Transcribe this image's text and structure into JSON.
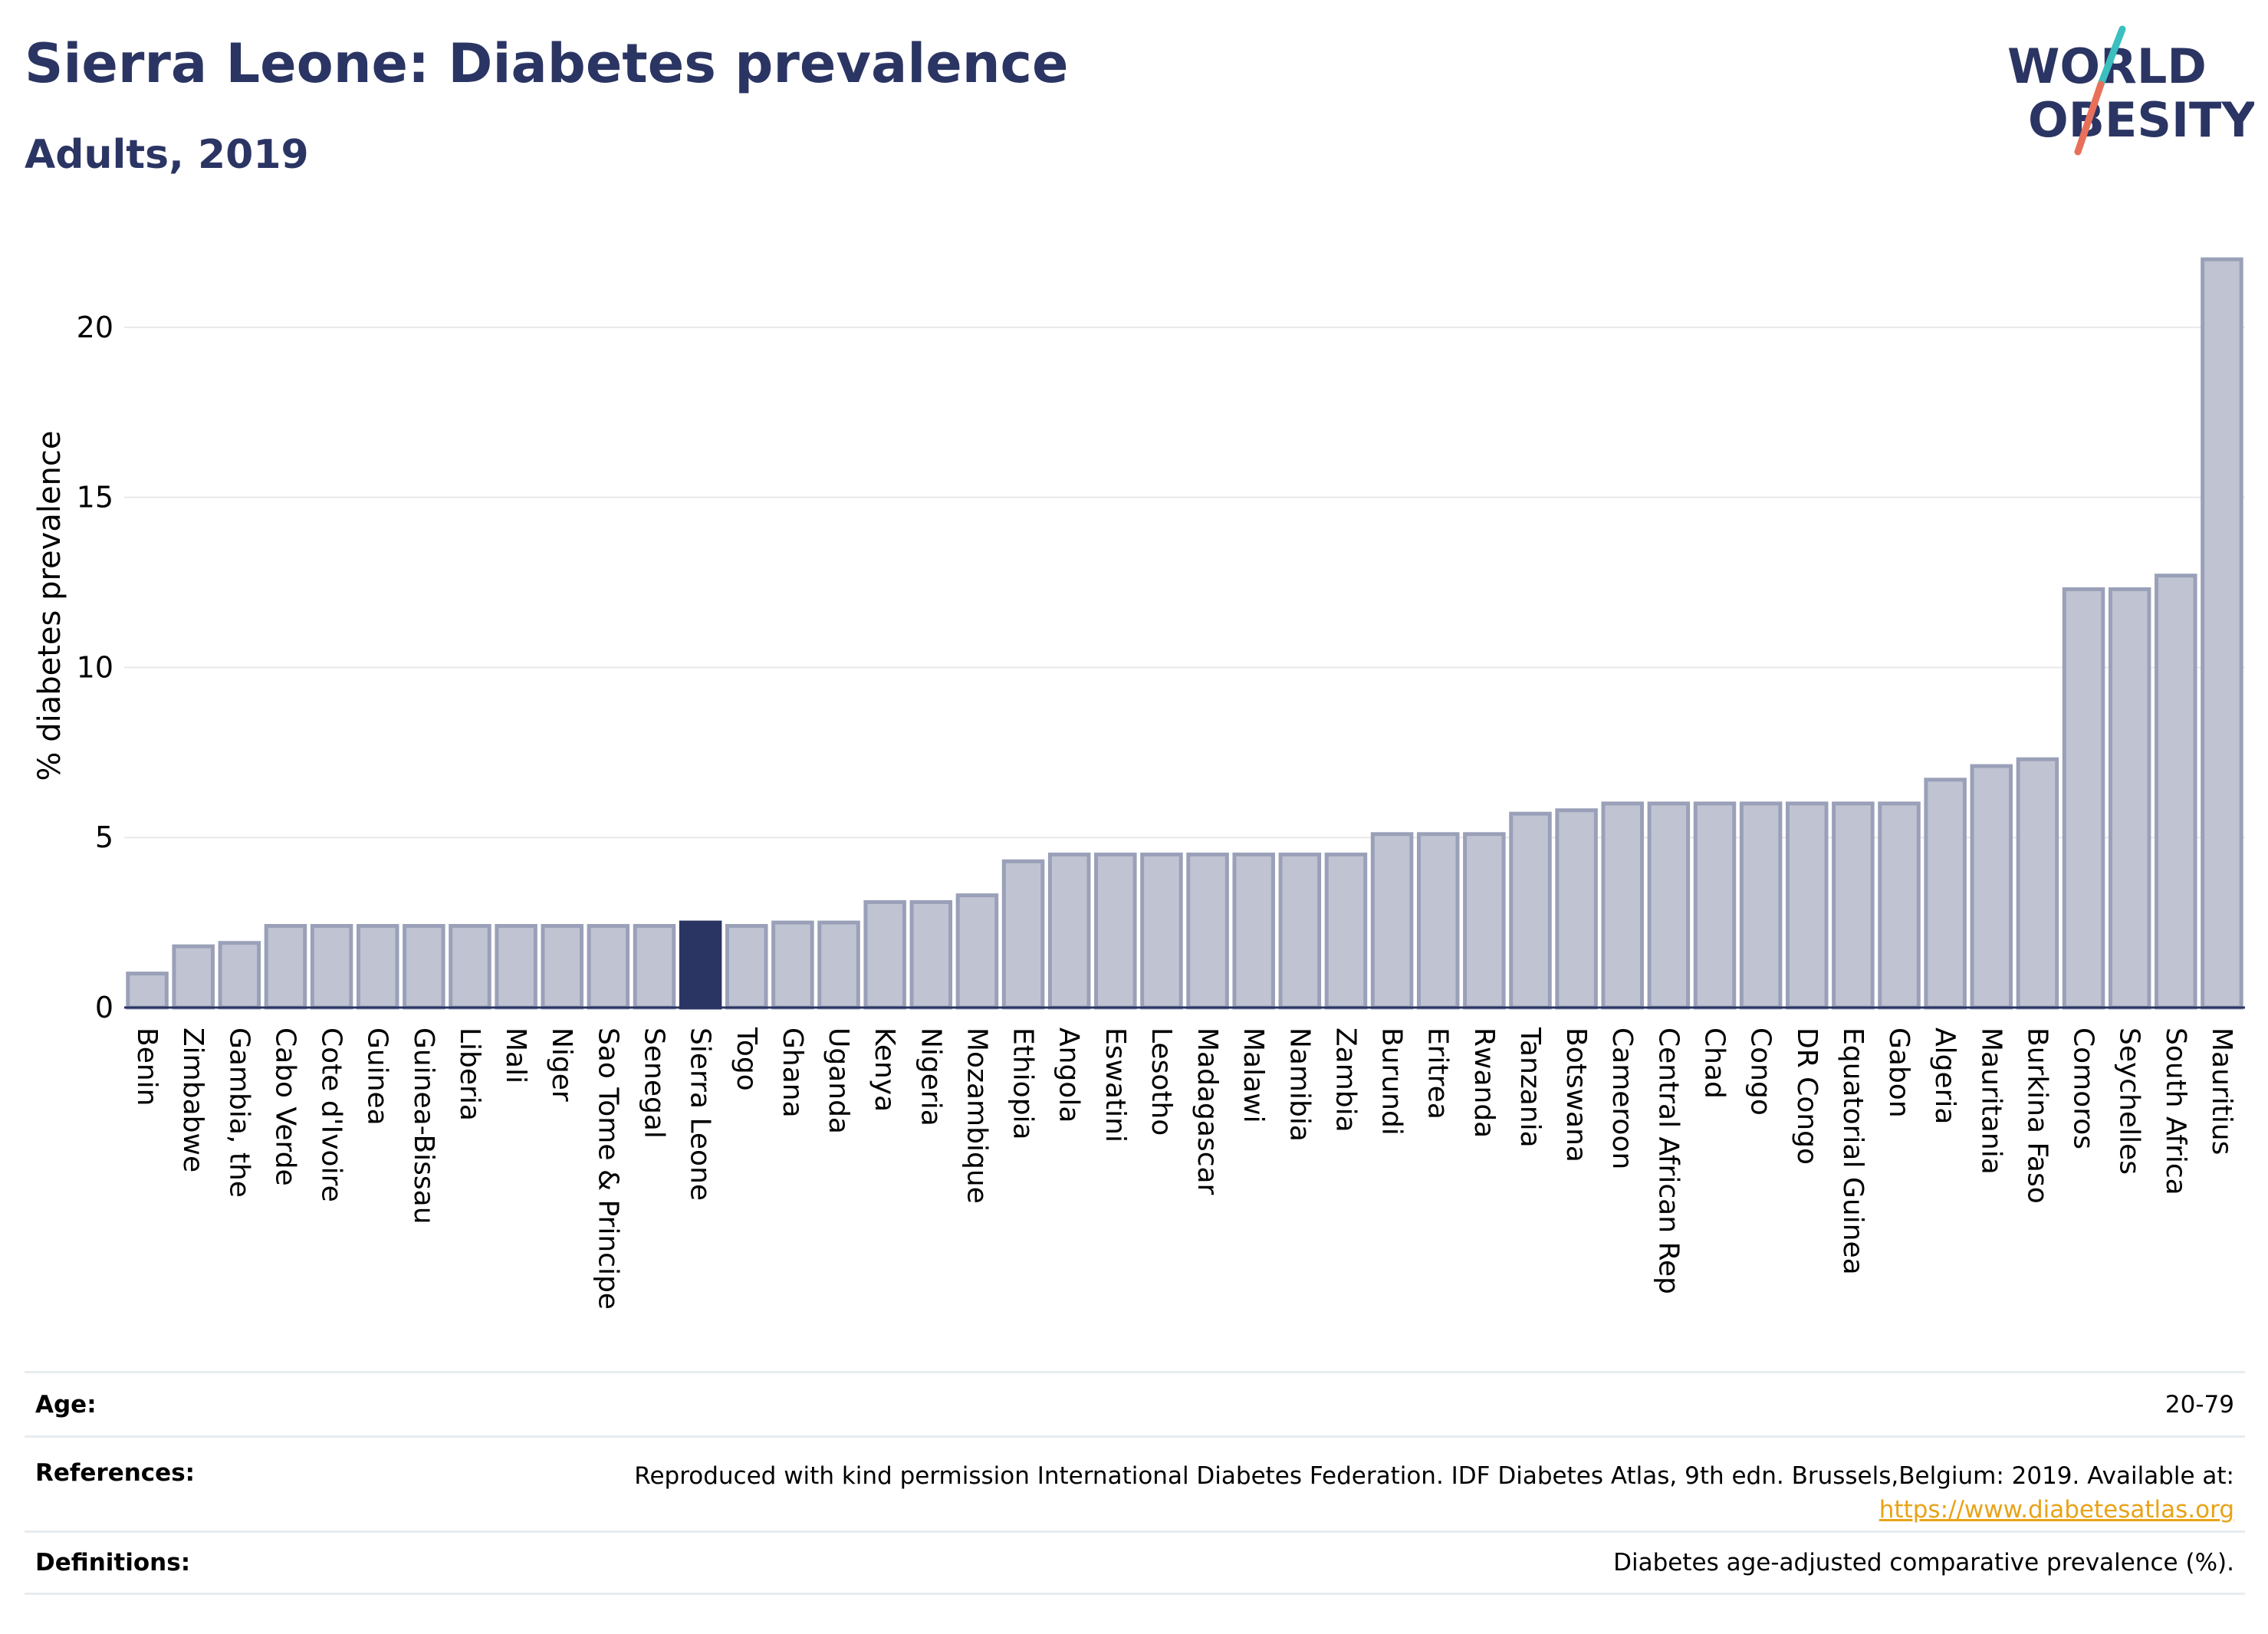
{
  "header": {
    "title": "Sierra Leone: Diabetes prevalence",
    "subtitle": "Adults, 2019"
  },
  "logo": {
    "line1": "WORLD",
    "line2": "OBESITY",
    "accent_colors": [
      "#3bbfbf",
      "#e8705a"
    ],
    "text_color": "#2b3563"
  },
  "chart_data": {
    "type": "bar",
    "title": "Sierra Leone: Diabetes prevalence",
    "subtitle": "Adults, 2019",
    "xlabel": "",
    "ylabel": "% diabetes prevalence",
    "ylim": [
      0,
      22.5
    ],
    "yticks": [
      0,
      5,
      10,
      15,
      20
    ],
    "grid": true,
    "highlight": "Sierra Leone",
    "colors": {
      "bar": "#c0c4d2",
      "bar_edge": "#9aa0b8",
      "highlight": "#2b3563",
      "grid": "#e8e8e8",
      "axis": "#2b3563"
    },
    "categories": [
      "Benin",
      "Zimbabwe",
      "Gambia, the",
      "Cabo Verde",
      "Cote d'Ivoire",
      "Guinea",
      "Guinea-Bissau",
      "Liberia",
      "Mali",
      "Niger",
      "Sao Tome & Principe",
      "Senegal",
      "Sierra Leone",
      "Togo",
      "Ghana",
      "Uganda",
      "Kenya",
      "Nigeria",
      "Mozambique",
      "Ethiopia",
      "Angola",
      "Eswatini",
      "Lesotho",
      "Madagascar",
      "Malawi",
      "Namibia",
      "Zambia",
      "Burundi",
      "Eritrea",
      "Rwanda",
      "Tanzania",
      "Botswana",
      "Cameroon",
      "Central African Rep",
      "Chad",
      "Congo",
      "DR Congo",
      "Equatorial Guinea",
      "Gabon",
      "Algeria",
      "Mauritania",
      "Burkina Faso",
      "Comoros",
      "Seychelles",
      "South Africa",
      "Mauritius"
    ],
    "values": [
      1.0,
      1.8,
      1.9,
      2.4,
      2.4,
      2.4,
      2.4,
      2.4,
      2.4,
      2.4,
      2.4,
      2.4,
      2.5,
      2.4,
      2.5,
      2.5,
      3.1,
      3.1,
      3.3,
      4.3,
      4.5,
      4.5,
      4.5,
      4.5,
      4.5,
      4.5,
      4.5,
      5.1,
      5.1,
      5.1,
      5.7,
      5.8,
      6.0,
      6.0,
      6.0,
      6.0,
      6.0,
      6.0,
      6.0,
      6.7,
      7.1,
      7.3,
      12.3,
      12.3,
      12.7,
      22.0
    ]
  },
  "info": {
    "age_label": "Age:",
    "age_value": "20-79",
    "references_label": "References:",
    "references_text": "Reproduced with kind permission International Diabetes Federation. IDF Diabetes Atlas, 9th edn. Brussels,Belgium: 2019. Available at:",
    "references_link": "https://www.diabetesatlas.org",
    "definitions_label": "Definitions:",
    "definitions_value": "Diabetes age-adjusted comparative prevalence (%)."
  }
}
